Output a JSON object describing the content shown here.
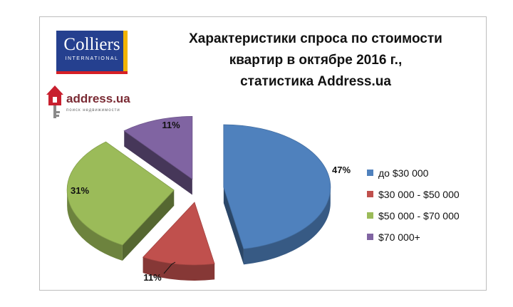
{
  "title_lines": [
    "Характеристики спроса по стоимости",
    "квартир  в октябре  2016 г.,",
    "статистика  Address.ua"
  ],
  "logos": {
    "colliers": {
      "name": "Colliers",
      "subtitle": "INTERNATIONAL"
    },
    "address": {
      "brand": "address.ua",
      "tagline": "поиск недвижимости"
    }
  },
  "colors": {
    "blue": "#4f81bd",
    "red": "#c0504d",
    "green": "#9bbb59",
    "purple": "#8064a2"
  },
  "chart_data": {
    "type": "pie",
    "style": "3d-exploded",
    "title": "Характеристики спроса по стоимости квартир  в октябре  2016 г., статистика  Address.ua",
    "categories": [
      "до $30 000",
      "$30 000 - $50 000",
      "$50 000 - $70 000",
      "$70 000+"
    ],
    "values": [
      47,
      11,
      31,
      11
    ],
    "labels": [
      "47%",
      "11%",
      "31%",
      "11%"
    ],
    "legend_position": "right"
  }
}
